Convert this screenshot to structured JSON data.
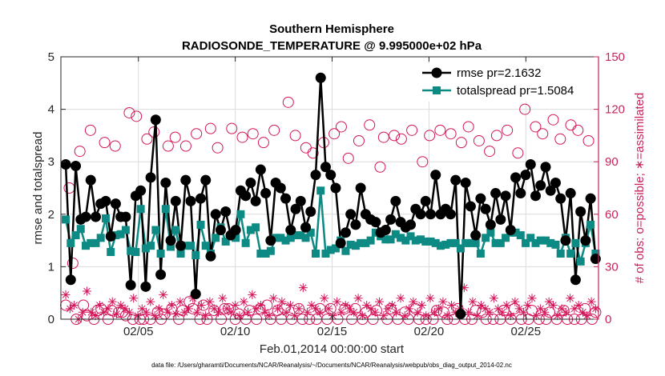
{
  "chart_data": {
    "type": "line",
    "title": "Southern Hemisphere",
    "subtitle": "RADIOSONDE_TEMPERATURE @ 9.995000e+02 hPa",
    "xlabel": "Feb.01,2014 00:00:00 start",
    "ylabel_left": "rmse and totalspread",
    "ylabel_right": "# of obs: o=possible; ∗=assimilated",
    "footnote": "data file: /Users/gharamti/Documents/NCAR/Reanalysis/~/Documents/NCAR/Reanalysis/webpub/obs_diag_output_2014-02.nc",
    "xlim": [
      1,
      28.75
    ],
    "ylim_left": [
      0,
      5
    ],
    "ylim_right": [
      0,
      150
    ],
    "x_ticks": [
      5,
      10,
      15,
      20,
      25
    ],
    "x_tick_labels": [
      "02/05",
      "02/10",
      "02/15",
      "02/20",
      "02/25"
    ],
    "y_ticks_left": [
      0,
      1,
      2,
      3,
      4,
      5
    ],
    "y_ticks_right": [
      0,
      30,
      60,
      90,
      120,
      150
    ],
    "legend": [
      {
        "name": "rmse pr=2.1632"
      },
      {
        "name": "totalspread pr=1.5084"
      }
    ],
    "colors": {
      "rmse": "#000000",
      "totalspread": "#0e8a85",
      "obs": "#d4155a",
      "right_axis": "#c8245a"
    },
    "series": [
      {
        "name": "rmse",
        "values": [
          2.95,
          0.75,
          2.92,
          1.9,
          1.95,
          2.65,
          1.95,
          2.2,
          2.25,
          1.58,
          2.2,
          1.95,
          1.95,
          0.65,
          2.35,
          2.45,
          0.62,
          2.7,
          3.8,
          0.85,
          2.6,
          1.5,
          2.25,
          1.4,
          2.65,
          2.25,
          0.48,
          2.3,
          2.65,
          1.2,
          2.0,
          1.7,
          2.05,
          1.6,
          1.7,
          2.45,
          2.35,
          2.6,
          2.25,
          2.85,
          2.4,
          1.5,
          2.6,
          2.5,
          2.3,
          1.7,
          2.1,
          2.25,
          1.75,
          2.05,
          2.75,
          4.6,
          2.9,
          2.75,
          2.5,
          1.45,
          1.65,
          2.0,
          1.8,
          2.5,
          2.0,
          1.9,
          1.85,
          1.65,
          1.7,
          1.9,
          2.25,
          1.85,
          1.75,
          1.8,
          2.1,
          2.0,
          2.25,
          2.0,
          2.75,
          2.0,
          2.1,
          2.0,
          2.65,
          0.1,
          2.6,
          2.15,
          1.6,
          2.3,
          2.1,
          1.8,
          2.4,
          1.9,
          2.35,
          1.7,
          2.7,
          2.4,
          2.75,
          2.95,
          2.35,
          2.55,
          2.9,
          2.45,
          2.6,
          2.3,
          1.5,
          2.4,
          0.75,
          2.05,
          1.5,
          2.3,
          1.15
        ]
      },
      {
        "name": "totalspread",
        "values": [
          1.9,
          1.45,
          1.6,
          1.72,
          1.4,
          1.45,
          1.45,
          1.55,
          1.92,
          1.28,
          1.6,
          1.62,
          1.7,
          1.3,
          1.28,
          2.1,
          1.35,
          1.4,
          1.7,
          1.25,
          2.1,
          1.38,
          1.7,
          1.25,
          1.4,
          1.4,
          1.22,
          1.8,
          1.4,
          1.25,
          1.55,
          1.75,
          1.48,
          1.58,
          1.55,
          2.0,
          1.45,
          1.7,
          1.75,
          1.25,
          1.25,
          1.3,
          1.55,
          1.55,
          1.5,
          1.55,
          1.6,
          1.6,
          1.55,
          1.65,
          1.25,
          2.45,
          1.25,
          1.32,
          1.35,
          1.5,
          1.3,
          1.42,
          1.4,
          1.45,
          1.45,
          1.5,
          1.65,
          1.58,
          1.52,
          1.52,
          1.62,
          1.55,
          1.5,
          1.58,
          1.5,
          1.52,
          1.48,
          1.48,
          1.45,
          1.4,
          1.42,
          1.45,
          1.45,
          1.35,
          1.45,
          1.45,
          1.45,
          1.25,
          1.55,
          1.65,
          1.45,
          1.45,
          1.55,
          1.65,
          1.65,
          1.6,
          1.45,
          1.55,
          1.45,
          1.5,
          1.5,
          1.45,
          1.42,
          1.25,
          1.55,
          1.25,
          1.45,
          1.1,
          1.45,
          1.8,
          1.25
        ]
      },
      {
        "name": "possible",
        "values": [
          8,
          75,
          32,
          0,
          96,
          8,
          2,
          108,
          0,
          5,
          6,
          101,
          0,
          5,
          99,
          4,
          4,
          2,
          118,
          0,
          116,
          0,
          0,
          103,
          0,
          107,
          4,
          0,
          3,
          99,
          6,
          104,
          0,
          5,
          99,
          10,
          6,
          106,
          0,
          8,
          0,
          109,
          5,
          98,
          0,
          6,
          6,
          109,
          0,
          3,
          104,
          0,
          5,
          106,
          0,
          6,
          101,
          8,
          0,
          108,
          5,
          0,
          6,
          124,
          0,
          105,
          6,
          0,
          98,
          0,
          95,
          0,
          6,
          101,
          0,
          6,
          106,
          0,
          110,
          6,
          92,
          0,
          6,
          102,
          0,
          4,
          111,
          0,
          5,
          87,
          104,
          0,
          6,
          105,
          0,
          103,
          4,
          0,
          108,
          6,
          0,
          90,
          0,
          105,
          0,
          5,
          108,
          4,
          0,
          106,
          0,
          6,
          101,
          0,
          110,
          0,
          5,
          102,
          4,
          0,
          96,
          0,
          105,
          0,
          5,
          108,
          0,
          6,
          95,
          0,
          120,
          0,
          5,
          110,
          0,
          106,
          0,
          4,
          114,
          0,
          103,
          5,
          0,
          111,
          0,
          108,
          0,
          6,
          102,
          0,
          4
        ]
      },
      {
        "name": "assimilated",
        "values": [
          14,
          6,
          8,
          0,
          4,
          16,
          4,
          2,
          8,
          4,
          6,
          10,
          3,
          8,
          6,
          4,
          12,
          2,
          6,
          4,
          10,
          2,
          6,
          14,
          4,
          8,
          3,
          10,
          4,
          6,
          12,
          4,
          8,
          2,
          10,
          6,
          4,
          12,
          6,
          4,
          8,
          2,
          10,
          4,
          14,
          6,
          8,
          4,
          2,
          12,
          6,
          10,
          4,
          8,
          2,
          6,
          18,
          4,
          8,
          6,
          4,
          12,
          6,
          2,
          10,
          4,
          8,
          6,
          4,
          12,
          2,
          8,
          6,
          4,
          10,
          2,
          6,
          8,
          4,
          12,
          2,
          6,
          10,
          4,
          8,
          2,
          12,
          4,
          6,
          10,
          2,
          8,
          4,
          6,
          18,
          4,
          10,
          2,
          8,
          6,
          4,
          12,
          6,
          4,
          8,
          2,
          10,
          6,
          4,
          8,
          12,
          2,
          6,
          4,
          10,
          8,
          2,
          6,
          4,
          12,
          6,
          8,
          4,
          2,
          10,
          6
        ]
      }
    ]
  }
}
